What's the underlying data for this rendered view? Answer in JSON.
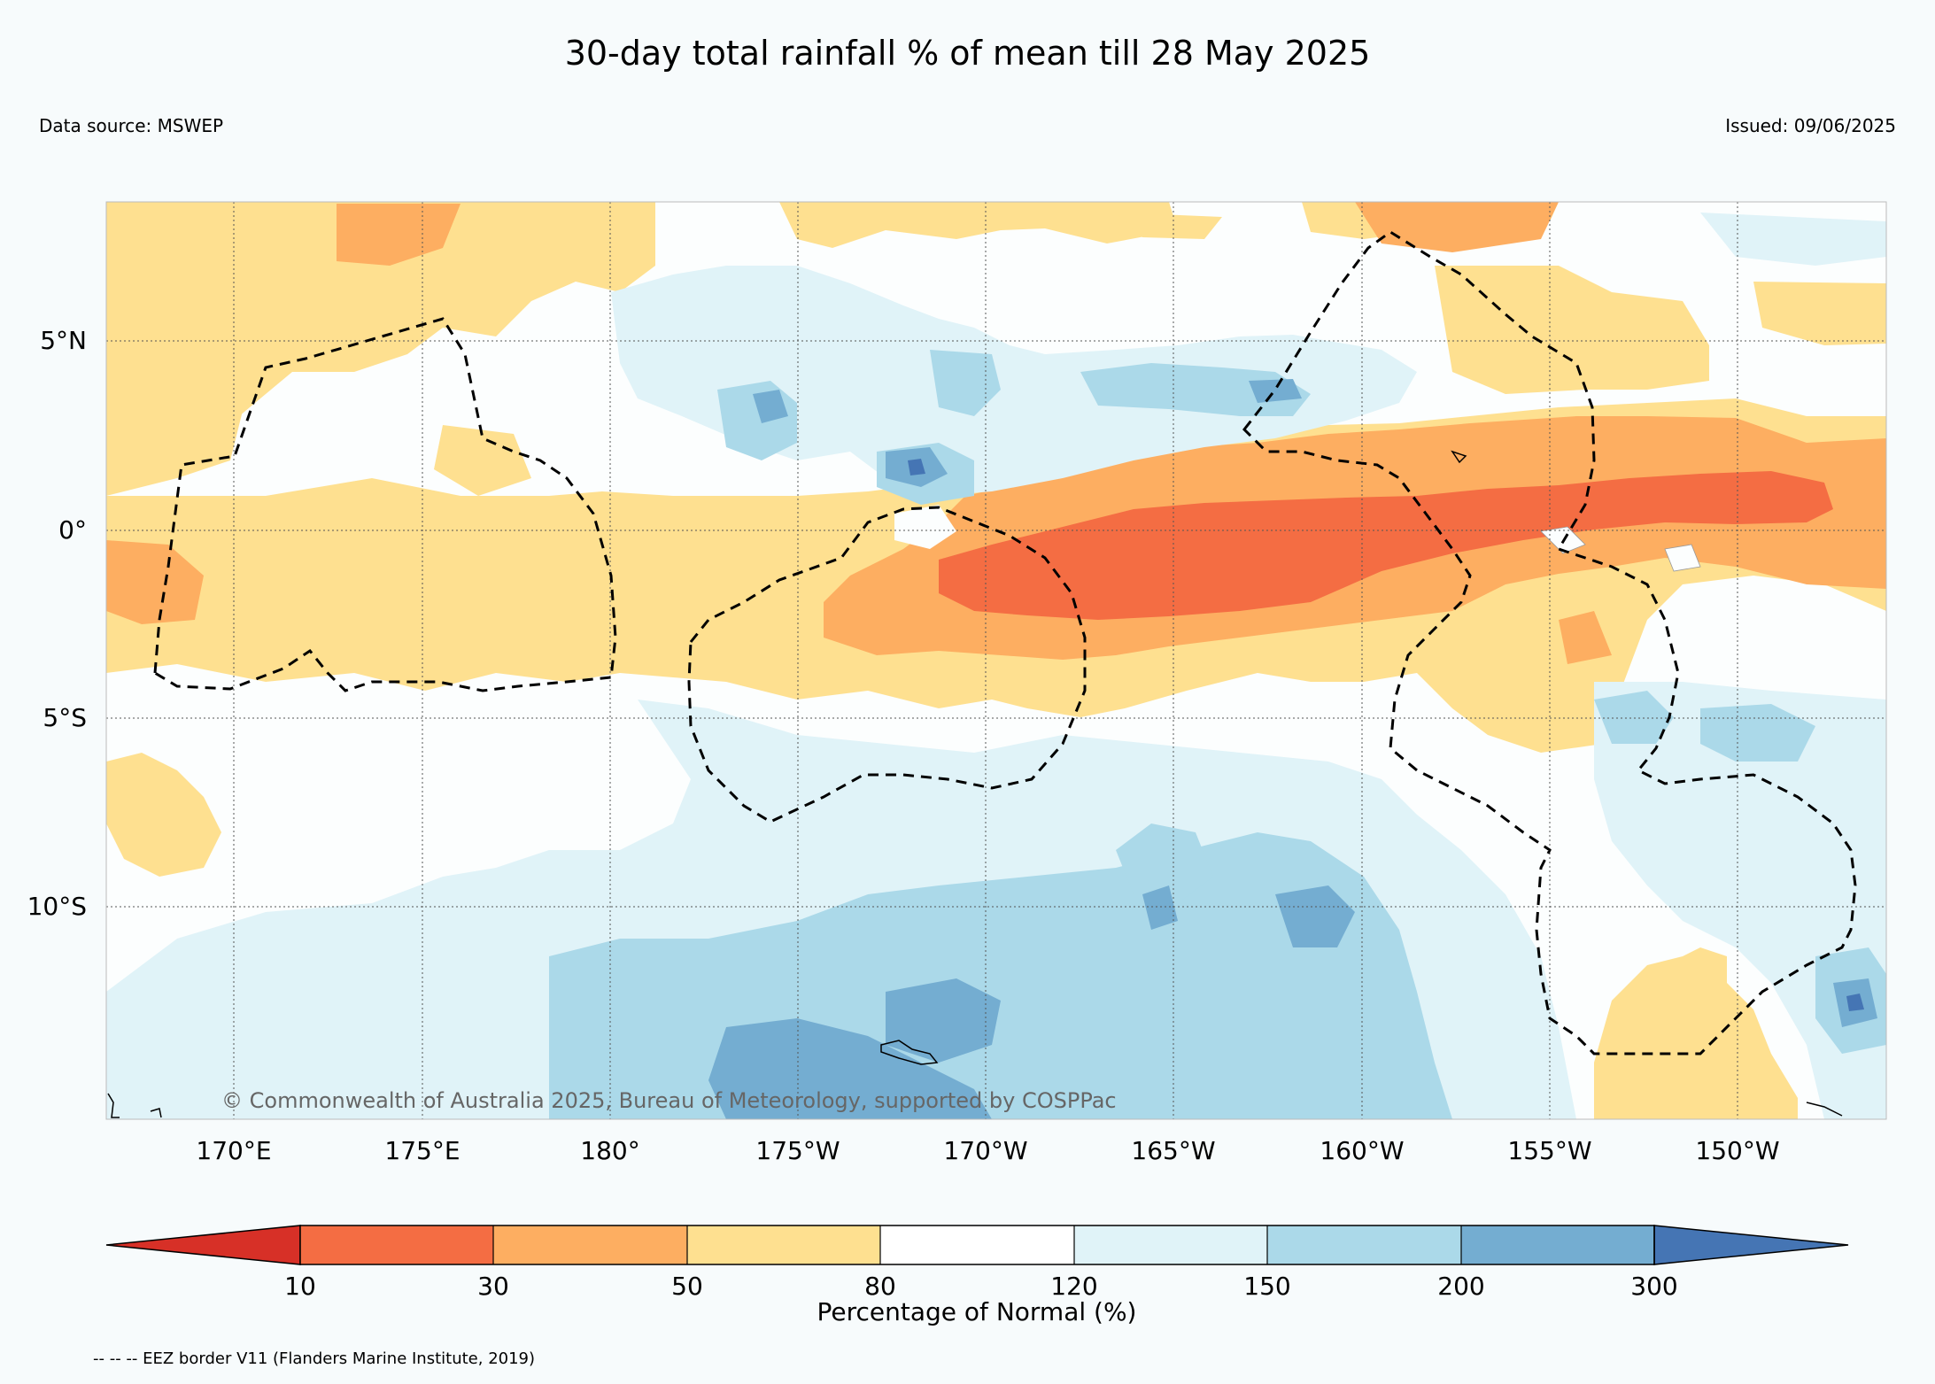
{
  "header": {
    "title": "30-day total rainfall % of mean till 28 May 2025",
    "data_source": "Data source: MSWEP",
    "issued": "Issued: 09/06/2025"
  },
  "map": {
    "lat_labels": [
      "5°N",
      "0°",
      "5°S",
      "10°S"
    ],
    "lon_labels": [
      "170°E",
      "175°E",
      "180°",
      "175°W",
      "170°W",
      "165°W",
      "160°W",
      "155°W",
      "150°W"
    ],
    "copyright": "© Commonwealth of Australia 2025, Bureau of Meteorology, supported by COSPPac"
  },
  "colorbar": {
    "title": "Percentage of Normal (%)",
    "tick_labels": [
      "10",
      "30",
      "50",
      "80",
      "120",
      "150",
      "200",
      "300"
    ],
    "colors": [
      "#d73027",
      "#f46d43",
      "#fdae61",
      "#fee090",
      "#ffffff",
      "#e0f3f8",
      "#abd9e9",
      "#74add1",
      "#4575b4"
    ]
  },
  "footer": {
    "eez_note": "-- -- -- EEZ border V11 (Flanders Marine Institute, 2019)"
  }
}
